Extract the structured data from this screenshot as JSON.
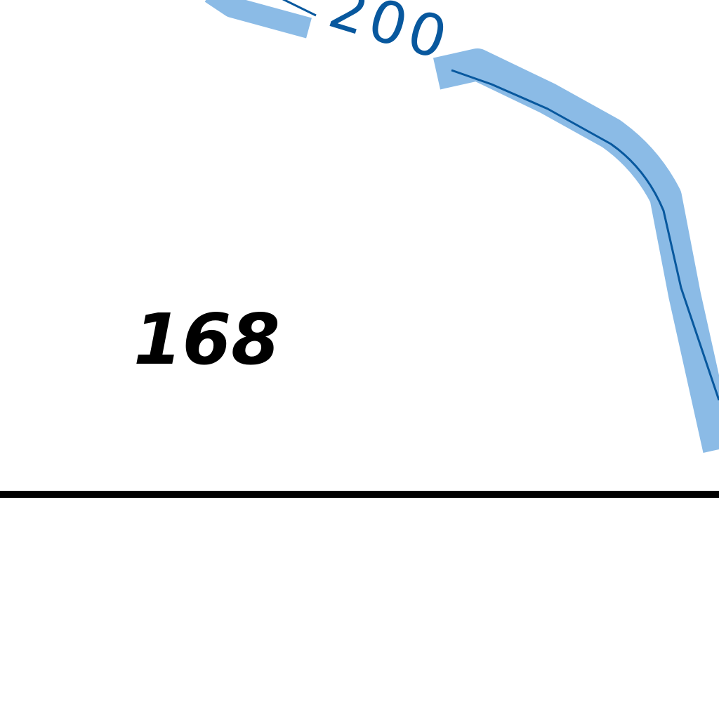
{
  "map": {
    "contour_label": "200",
    "spot_height": "168",
    "colors": {
      "background": "#ffffff",
      "contour_halo": "#8bbbe6",
      "contour_line": "#08589e",
      "contour_label": "#08589e",
      "boundary_line": "#000000",
      "spot_height_text": "#000000"
    }
  }
}
